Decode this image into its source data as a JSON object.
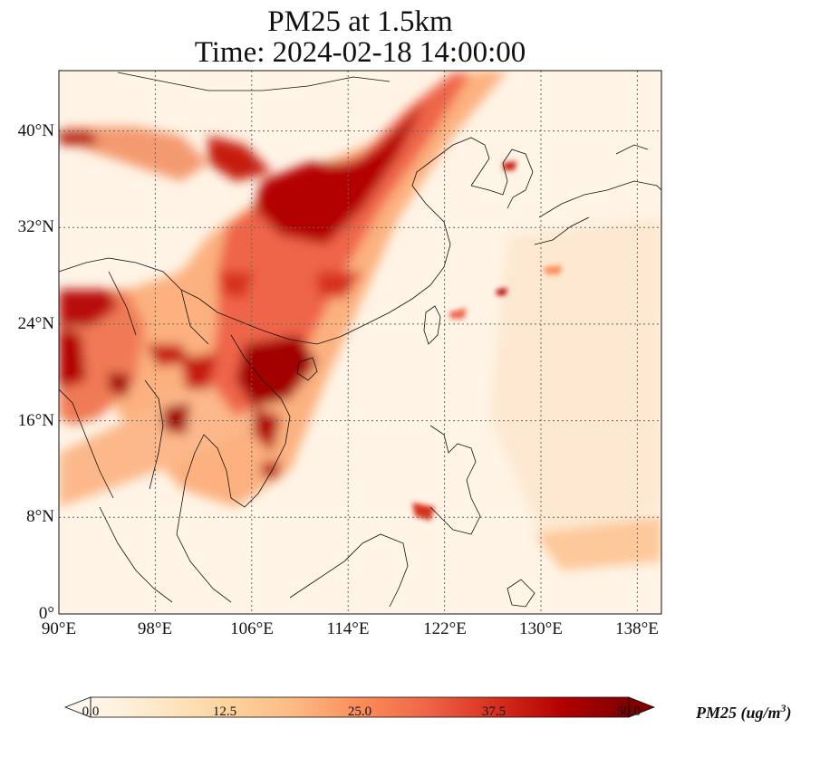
{
  "title": {
    "line1": "PM25 at 1.5km",
    "line2": "Time: 2024-02-18 14:00:00"
  },
  "map": {
    "projection": "PlateCarree",
    "lon_range": [
      90,
      140
    ],
    "lat_range": [
      0,
      45
    ],
    "gridlines": true,
    "colormap": "OrRd",
    "x_ticks": [
      "90°E",
      "98°E",
      "106°E",
      "114°E",
      "122°E",
      "130°E",
      "138°E"
    ],
    "x_tick_values": [
      90,
      98,
      106,
      114,
      122,
      130,
      138
    ],
    "y_ticks": [
      "0°",
      "8°N",
      "16°N",
      "24°N",
      "32°N",
      "40°N"
    ],
    "y_tick_values": [
      0,
      8,
      16,
      24,
      32,
      40
    ]
  },
  "colorbar": {
    "label_main": "PM25 (ug/m",
    "label_sup": "3",
    "label_end": ")",
    "ticks": [
      "0.0",
      "12.5",
      "25.0",
      "37.5",
      "50.0"
    ],
    "tick_values": [
      0,
      12.5,
      25,
      37.5,
      50
    ],
    "vmin": 0,
    "vmax": 50,
    "extend": "both",
    "colors": [
      "#fff7ec",
      "#fee8c8",
      "#fdd49e",
      "#fdbb84",
      "#fc8d59",
      "#ef6548",
      "#d7301f",
      "#b30000",
      "#7f0000"
    ]
  }
}
